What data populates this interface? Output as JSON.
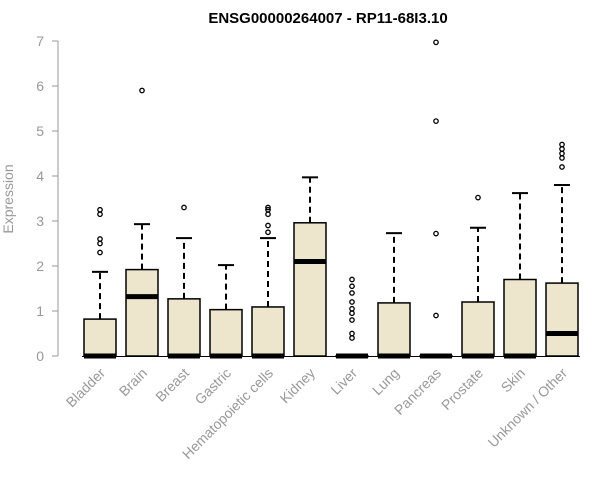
{
  "chart_data": {
    "type": "boxplot",
    "title": "ENSG00000264007 - RP11-68I3.10",
    "xlabel": "",
    "ylabel": "Expression",
    "ylim": [
      0,
      7
    ],
    "yticks": [
      0,
      1,
      2,
      3,
      4,
      5,
      6,
      7
    ],
    "grid": false,
    "box_color": "#ede6cc",
    "categories": [
      "Bladder",
      "Brain",
      "Breast",
      "Gastric",
      "Hematopoietic cells",
      "Kidney",
      "Liver",
      "Lung",
      "Pancreas",
      "Prostate",
      "Skin",
      "Unknown / Other"
    ],
    "boxes": [
      {
        "min": 0,
        "q1": 0,
        "median": 0,
        "q3": 0.82,
        "max": 1.87,
        "outliers": [
          2.3,
          2.5,
          2.6,
          3.15,
          3.25
        ]
      },
      {
        "min": 0,
        "q1": 0,
        "median": 1.32,
        "q3": 1.92,
        "max": 2.93,
        "outliers": [
          5.9
        ]
      },
      {
        "min": 0,
        "q1": 0,
        "median": 0,
        "q3": 1.27,
        "max": 2.62,
        "outliers": [
          3.3
        ]
      },
      {
        "min": 0,
        "q1": 0,
        "median": 0,
        "q3": 1.03,
        "max": 2.02,
        "outliers": []
      },
      {
        "min": 0,
        "q1": 0,
        "median": 0,
        "q3": 1.09,
        "max": 2.62,
        "outliers": [
          2.75,
          2.9,
          3.15,
          3.25,
          3.3
        ]
      },
      {
        "min": 0,
        "q1": 0,
        "median": 2.1,
        "q3": 2.96,
        "max": 3.97,
        "outliers": []
      },
      {
        "min": 0,
        "q1": 0,
        "median": 0,
        "q3": 0,
        "max": 0,
        "outliers": [
          0.4,
          0.5,
          0.8,
          0.95,
          1.05,
          1.2,
          1.4,
          1.55,
          1.7
        ]
      },
      {
        "min": 0,
        "q1": 0,
        "median": 0,
        "q3": 1.18,
        "max": 2.73,
        "outliers": []
      },
      {
        "min": 0,
        "q1": 0,
        "median": 0,
        "q3": 0,
        "max": 0,
        "outliers": [
          0.9,
          2.72,
          5.22,
          6.97
        ]
      },
      {
        "min": 0,
        "q1": 0,
        "median": 0,
        "q3": 1.2,
        "max": 2.85,
        "outliers": [
          3.52
        ]
      },
      {
        "min": 0,
        "q1": 0,
        "median": 0,
        "q3": 1.7,
        "max": 3.62,
        "outliers": []
      },
      {
        "min": 0,
        "q1": 0,
        "median": 0.5,
        "q3": 1.62,
        "max": 3.8,
        "outliers": [
          4.2,
          4.4,
          4.5,
          4.6,
          4.7
        ]
      }
    ]
  }
}
